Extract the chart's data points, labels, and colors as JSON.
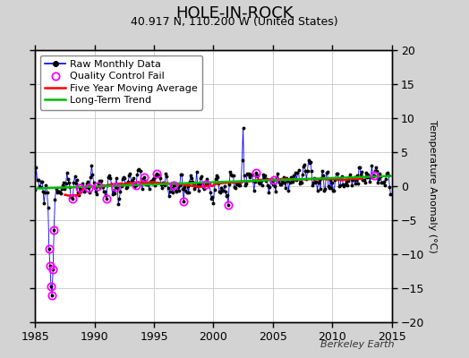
{
  "title": "HOLE-IN-ROCK",
  "subtitle": "40.917 N, 110.200 W (United States)",
  "ylabel": "Temperature Anomaly (°C)",
  "watermark": "Berkeley Earth",
  "xlim": [
    1985,
    2015
  ],
  "ylim": [
    -20,
    20
  ],
  "yticks": [
    -20,
    -15,
    -10,
    -5,
    0,
    5,
    10,
    15,
    20
  ],
  "xticks": [
    1985,
    1990,
    1995,
    2000,
    2005,
    2010,
    2015
  ],
  "bg_color": "#d3d3d3",
  "plot_bg_color": "#ffffff",
  "grid_color": "#c8c8c8",
  "raw_color": "#0000ff",
  "dot_color": "#000000",
  "qc_color": "#ff00ff",
  "ma_color": "#ff0000",
  "trend_color": "#00bb00",
  "legend_raw": "Raw Monthly Data",
  "legend_qc": "Quality Control Fail",
  "legend_ma": "Five Year Moving Average",
  "legend_trend": "Long-Term Trend",
  "title_fontsize": 13,
  "subtitle_fontsize": 9,
  "ylabel_fontsize": 8,
  "tick_fontsize": 9,
  "legend_fontsize": 8,
  "watermark_fontsize": 8
}
